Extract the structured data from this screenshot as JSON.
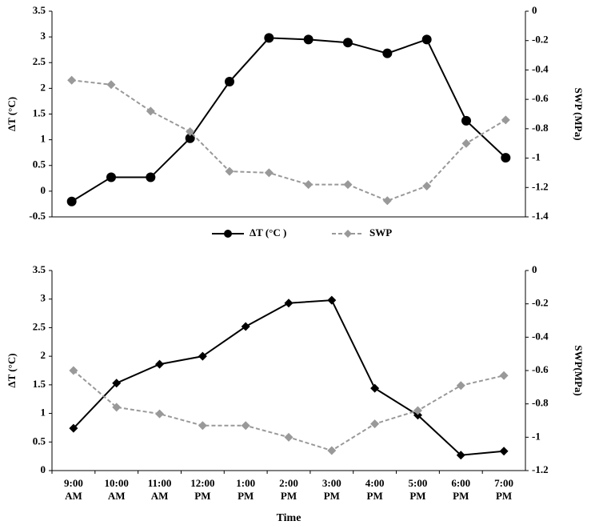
{
  "chart_data": [
    {
      "type": "line",
      "categories": [
        null,
        null,
        null,
        null,
        null,
        null,
        null,
        null,
        null,
        null,
        null,
        null
      ],
      "ylabel": "ΔT (°C)",
      "y2label": "SWP (MPa)",
      "ylim": [
        -0.5,
        3.5
      ],
      "yticks": [
        -0.5,
        0,
        0.5,
        1,
        1.5,
        2,
        2.5,
        3,
        3.5
      ],
      "y2lim": [
        -1.4,
        0
      ],
      "y2ticks": [
        0,
        -0.2,
        -0.4,
        -0.6,
        -0.8,
        -1,
        -1.2,
        -1.4
      ],
      "legend": "bottom",
      "series": [
        {
          "name": "ΔT (°C )",
          "color": "#000000",
          "marker": "circle",
          "dash": false,
          "values": [
            -0.2,
            0.27,
            0.27,
            1.03,
            2.13,
            2.98,
            2.95,
            2.89,
            2.68,
            2.95,
            1.37,
            0.65
          ]
        },
        {
          "name": "SWP",
          "color": "#999999",
          "marker": "diamond",
          "dash": true,
          "axis": "y2",
          "values": [
            -0.47,
            -0.5,
            -0.68,
            -0.82,
            -1.09,
            -1.1,
            -1.18,
            -1.18,
            -1.29,
            -1.19,
            -0.9,
            -0.74
          ]
        }
      ]
    },
    {
      "type": "line",
      "categories": [
        "9:00 AM",
        "10:00 AM",
        "11:00 AM",
        "12:00 PM",
        "1:00 PM",
        "2:00 PM",
        "3:00 PM",
        "4:00 PM",
        "5:00 PM",
        "6:00 PM",
        "7:00 PM"
      ],
      "xlabel": "Time",
      "ylabel": "ΔT (°C)",
      "y2label": "SWP(MPa)",
      "ylim": [
        0,
        3.5
      ],
      "yticks": [
        0,
        0.5,
        1,
        1.5,
        2,
        2.5,
        3,
        3.5
      ],
      "y2lim": [
        -1.2,
        0
      ],
      "y2ticks": [
        0,
        -0.2,
        -0.4,
        -0.6,
        -0.8,
        -1,
        -1.2
      ],
      "series": [
        {
          "name": "ΔT",
          "color": "#000000",
          "marker": "diamond",
          "dash": false,
          "values": [
            0.74,
            1.53,
            1.86,
            2.0,
            2.52,
            2.93,
            2.98,
            1.44,
            0.97,
            0.27,
            0.34
          ]
        },
        {
          "name": "SWP",
          "color": "#999999",
          "marker": "diamond",
          "dash": true,
          "axis": "y2",
          "values": [
            -0.6,
            -0.82,
            -0.86,
            -0.93,
            -0.93,
            -1.0,
            -1.08,
            -0.92,
            -0.84,
            -0.69,
            -0.63
          ]
        }
      ]
    }
  ]
}
